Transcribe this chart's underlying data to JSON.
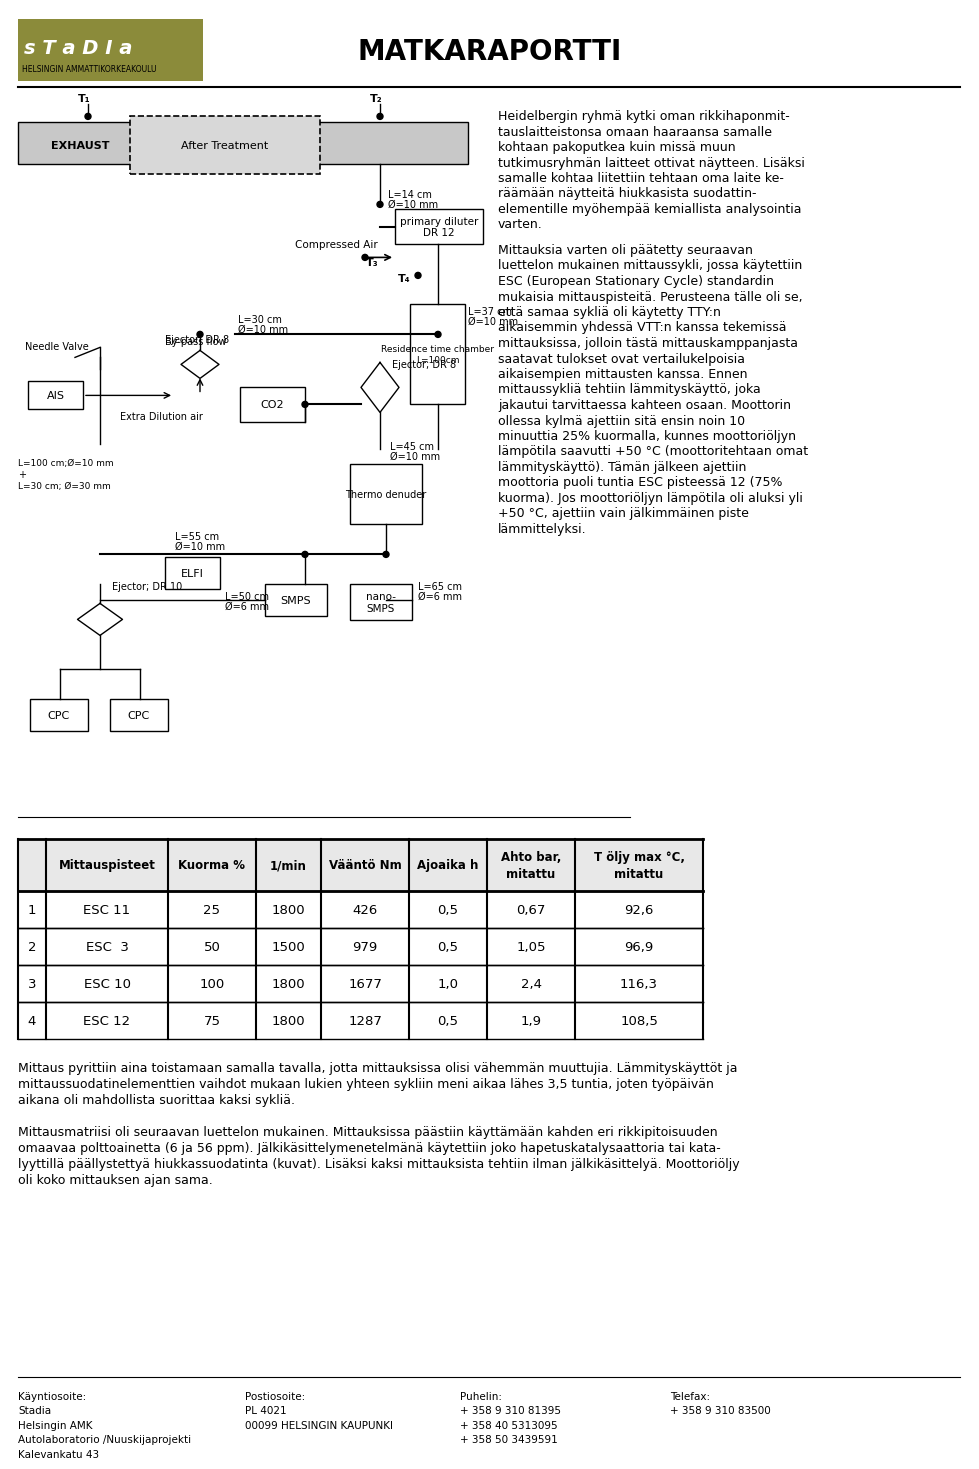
{
  "title": "MATKARAPORTTI",
  "logo_text": "sTaDia",
  "logo_subtext": "HELSINGIN AMMATTIKORKEAKOULU",
  "logo_bg_color": "#8B8B3A",
  "table_headers": [
    "",
    "Mittauspisteet",
    "Kuorma %",
    "1/min",
    "Vääntö Nm",
    "Ajoaika h",
    "Ahto bar,\nmitattu",
    "T öljy max °C,\nmitattu"
  ],
  "table_data": [
    [
      "1",
      "ESC 11",
      "25",
      "1800",
      "426",
      "0,5",
      "0,67",
      "92,6"
    ],
    [
      "2",
      "ESC  3",
      "50",
      "1500",
      "979",
      "0,5",
      "1,05",
      "96,9"
    ],
    [
      "3",
      "ESC 10",
      "100",
      "1800",
      "1677",
      "1,0",
      "2,4",
      "116,3"
    ],
    [
      "4",
      "ESC 12",
      "75",
      "1800",
      "1287",
      "0,5",
      "1,9",
      "108,5"
    ]
  ],
  "para1_lines": [
    "Heidelbergin ryhmä kytki oman rikkihaponmit-",
    "tauslaitteistonsa omaan haaraansa samalle",
    "kohtaan pakoputkea kuin missä muun",
    "tutkimusryhmän laitteet ottivat näytteen. Lisäksi",
    "samalle kohtaa liitettiin tehtaan oma laite ke-",
    "räämään näytteitä hiukkasista suodattin-",
    "elementille myöhempää kemiallista analysointia",
    "varten."
  ],
  "para2_lines": [
    "Mittauksia varten oli päätetty seuraavan",
    "luettelon mukainen mittaussykli, jossa käytettiin",
    "ESC (European Stationary Cycle) standardin",
    "mukaisia mittauspisteitä. Perusteena tälle oli se,",
    "että samaa sykliä oli käytetty TTY:n",
    "aikaisemmin yhdessä VTT:n kanssa tekemissä",
    "mittauksissa, jolloin tästä mittauskamppanjasta",
    "saatavat tulokset ovat vertailukelpoisia",
    "aikaisempien mittausten kanssa. Ennen",
    "mittaussykliä tehtiin lämmityskäyttö, joka",
    "jakautui tarvittaessa kahteen osaan. Moottorin",
    "ollessa kylmä ajettiin sitä ensin noin 10",
    "minuuttia 25% kuormalla, kunnes moottoriöljyn",
    "lämpötila saavutti +50 °C (moottoritehtaan omat",
    "lämmityskäyttö). Tämän jälkeen ajettiin",
    "moottoria puoli tuntia ESC pisteessä 12 (75%",
    "kuorma). Jos moottoriöljyn lämpötila oli aluksi yli",
    "+50 °C, ajettiin vain jälkimmäinen piste",
    "lämmittelyksi."
  ],
  "below_lines": [
    "Mittaus pyrittiin aina toistamaan samalla tavalla, jotta mittauksissa olisi vähemmän muuttujia. Lämmityskäyttöt ja",
    "mittaussuodatinelementtien vaihdot mukaan lukien yhteen sykliin meni aikaa lähes 3,5 tuntia, joten työpäivän",
    "aikana oli mahdollista suorittaa kaksi sykliä.",
    "",
    "Mittausmatriisi oli seuraavan luettelon mukainen. Mittauksissa päästiin käyttämään kahden eri rikkipitoisuuden",
    "omaavaa polttoainetta (6 ja 56 ppm). Jälkikäsittelymenetelmänä käytettiin joko hapetuskatalysaattoria tai kata-",
    "lyyttillä päällystettyä hiukkassuodatinta (kuvat). Lisäksi kaksi mittauksista tehtiin ilman jälkikäsittelyä. Moottoriöljy",
    "oli koko mittauksen ajan sama."
  ],
  "footer_left": "Käyntiosoite:\nStadia\nHelsingin AMK\nAutolaboratorio /Nuuskijaprojekti\nKalevankatu 43",
  "footer_post": "Postiosoite:\nPL 4021\n00099 HELSINGIN KAUPUNKI",
  "footer_phone": "Puhelin:\n+ 358 9 310 81395\n+ 358 40 5313095\n+ 358 50 3439591",
  "footer_fax": "Telefax:\n+ 358 9 310 83500",
  "bg_color": "#ffffff"
}
